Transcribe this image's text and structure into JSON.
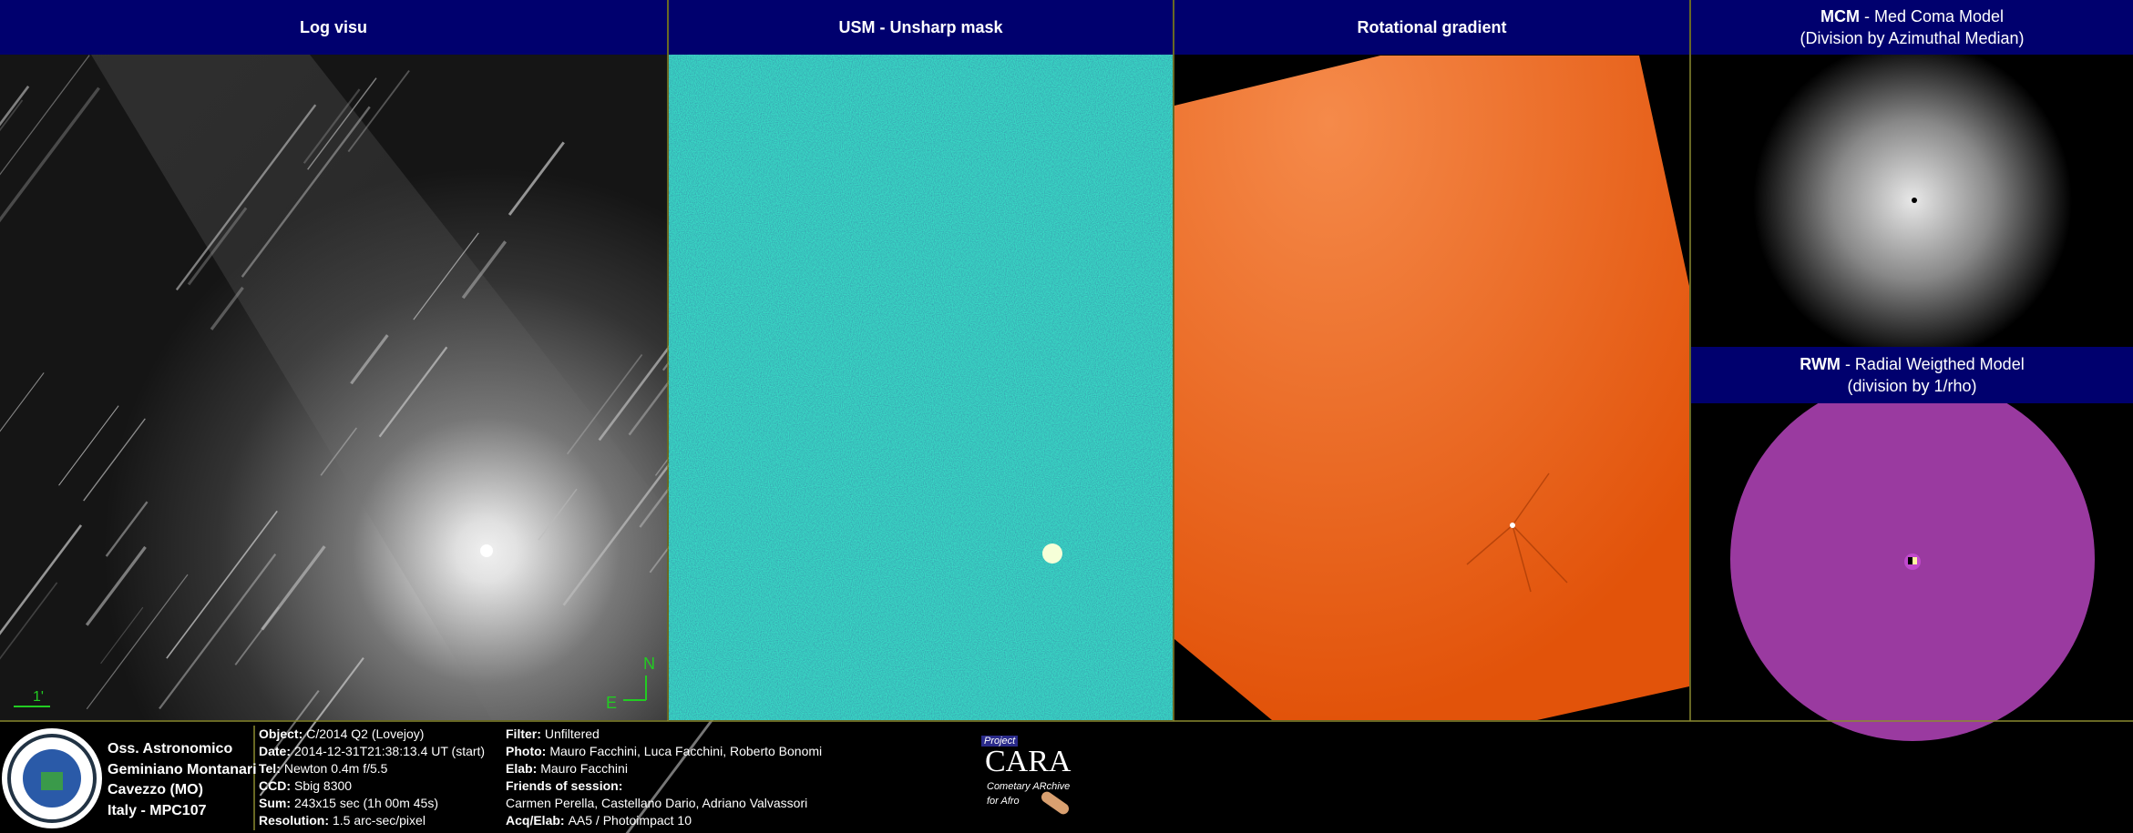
{
  "panels": [
    {
      "title": "Log visu"
    },
    {
      "title": "USM - Unsharp mask"
    },
    {
      "title": "Rotational gradient"
    },
    {
      "title_bold": "MCM",
      "title": "- Med Coma Model",
      "subtitle": "(Division by Azimuthal Median)"
    },
    {
      "title_bold": "RWM",
      "title": "- Radial Weigthed Model",
      "subtitle": "(division by 1/rho)"
    }
  ],
  "scale_label": "1'",
  "compass": {
    "north": "N",
    "east": "E"
  },
  "observatory": [
    "Oss. Astronomico",
    "Geminiano Montanari",
    "Cavezzo (MO)",
    "Italy - MPC107"
  ],
  "info_left": [
    {
      "label": "Object:",
      "value": "C/2014 Q2 (Lovejoy)"
    },
    {
      "label": "Date:",
      "value": "2014-12-31T21:38:13.4 UT (start)"
    },
    {
      "label": "Tel:",
      "value": "Newton 0.4m f/5.5"
    },
    {
      "label": "CCD:",
      "value": "Sbig 8300"
    },
    {
      "label": "Sum:",
      "value": "243x15 sec (1h 00m 45s)"
    },
    {
      "label": "Resolution:",
      "value": "1.5 arc-sec/pixel"
    }
  ],
  "info_right": [
    {
      "label": "Filter:",
      "value": "Unfiltered"
    },
    {
      "label": "Photo:",
      "value": "Mauro Facchini, Luca Facchini, Roberto Bonomi"
    },
    {
      "label": "Elab:",
      "value": "Mauro Facchini"
    },
    {
      "label": "Friends of session:",
      "value": ""
    },
    {
      "label": "",
      "value": "Carmen Perella, Castellano Dario, Adriano Valvassori"
    },
    {
      "label": "Acq/Elab:",
      "value": "AA5 / Photoimpact 10"
    }
  ],
  "logo": {
    "project": "Project",
    "name": "CARA",
    "line1": "Cometary ARchive",
    "line2": "for Afro"
  }
}
